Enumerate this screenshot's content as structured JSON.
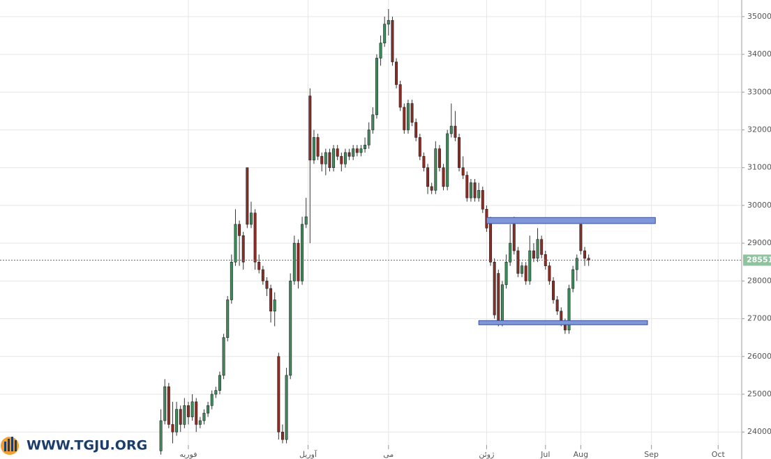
{
  "chart_data": {
    "type": "candlestick",
    "logo": "WWW.TGJU.ORG",
    "candles": [
      [
        23500,
        24600,
        23400,
        24300
      ],
      [
        24300,
        25400,
        24200,
        25200
      ],
      [
        25200,
        25300,
        24100,
        24200
      ],
      [
        24200,
        24800,
        23700,
        24000
      ],
      [
        24000,
        24800,
        23900,
        24600
      ],
      [
        24600,
        24700,
        24000,
        24200
      ],
      [
        24200,
        24900,
        24100,
        24700
      ],
      [
        24700,
        24800,
        24200,
        24400
      ],
      [
        24400,
        25000,
        24300,
        24800
      ],
      [
        24800,
        24900,
        24000,
        24200
      ],
      [
        24200,
        24400,
        24100,
        24300
      ],
      [
        24300,
        24600,
        24200,
        24500
      ],
      [
        24500,
        24800,
        24400,
        24700
      ],
      [
        24700,
        25100,
        24600,
        25000
      ],
      [
        25000,
        25200,
        24900,
        25100
      ],
      [
        25100,
        25600,
        25000,
        25500
      ],
      [
        25500,
        26600,
        25400,
        26500
      ],
      [
        26500,
        27600,
        26400,
        27500
      ],
      [
        27500,
        28700,
        27400,
        28500
      ],
      [
        28500,
        29900,
        28400,
        29500
      ],
      [
        29500,
        29600,
        28400,
        29200
      ],
      [
        29200,
        29300,
        28300,
        28500
      ],
      [
        31000,
        31000,
        29400,
        29500
      ],
      [
        29500,
        30100,
        29400,
        29800
      ],
      [
        29800,
        29900,
        28300,
        28500
      ],
      [
        28500,
        28700,
        28200,
        28300
      ],
      [
        28300,
        28400,
        27900,
        28000
      ],
      [
        28000,
        28100,
        27600,
        27800
      ],
      [
        27800,
        27900,
        26900,
        27200
      ],
      [
        27200,
        27700,
        26800,
        27500
      ],
      [
        26000,
        26100,
        23800,
        24000
      ],
      [
        24000,
        24200,
        23700,
        23800
      ],
      [
        23800,
        25700,
        23700,
        25500
      ],
      [
        25500,
        28200,
        25400,
        28000
      ],
      [
        28000,
        29200,
        27900,
        29000
      ],
      [
        29000,
        29100,
        27800,
        28000
      ],
      [
        28000,
        29700,
        27900,
        29500
      ],
      [
        29500,
        30200,
        29400,
        29700
      ],
      [
        32900,
        33100,
        29000,
        31200
      ],
      [
        31200,
        32000,
        31100,
        31800
      ],
      [
        31800,
        31900,
        31200,
        31300
      ],
      [
        31300,
        31400,
        30900,
        31100
      ],
      [
        31100,
        31500,
        30800,
        31400
      ],
      [
        31400,
        31500,
        30900,
        31000
      ],
      [
        31000,
        31600,
        30900,
        31500
      ],
      [
        31500,
        31600,
        31200,
        31300
      ],
      [
        31300,
        31400,
        30900,
        31100
      ],
      [
        31100,
        31500,
        31000,
        31400
      ],
      [
        31400,
        31500,
        31200,
        31300
      ],
      [
        31300,
        31600,
        31200,
        31500
      ],
      [
        31500,
        31600,
        31300,
        31400
      ],
      [
        31400,
        31600,
        31300,
        31500
      ],
      [
        31500,
        31800,
        31400,
        31600
      ],
      [
        31600,
        32200,
        31500,
        32000
      ],
      [
        32000,
        32600,
        31900,
        32400
      ],
      [
        32400,
        34000,
        32300,
        33900
      ],
      [
        33900,
        34500,
        33700,
        34300
      ],
      [
        34300,
        35000,
        34200,
        34800
      ],
      [
        34800,
        35200,
        34500,
        34900
      ],
      [
        34900,
        35000,
        33700,
        33800
      ],
      [
        33800,
        33900,
        33100,
        33200
      ],
      [
        33200,
        33300,
        32500,
        32600
      ],
      [
        32600,
        32700,
        31900,
        32000
      ],
      [
        32000,
        32800,
        31900,
        32700
      ],
      [
        32700,
        32800,
        32100,
        32200
      ],
      [
        32200,
        32300,
        31700,
        31800
      ],
      [
        31800,
        31900,
        31200,
        31300
      ],
      [
        31300,
        31400,
        30900,
        31000
      ],
      [
        31000,
        31100,
        30300,
        30500
      ],
      [
        30500,
        30600,
        30300,
        30400
      ],
      [
        30400,
        31700,
        30300,
        31500
      ],
      [
        31500,
        31600,
        30900,
        31000
      ],
      [
        31000,
        31100,
        30400,
        30500
      ],
      [
        30500,
        32000,
        30400,
        31900
      ],
      [
        31900,
        32700,
        31800,
        32100
      ],
      [
        32100,
        32500,
        31700,
        31800
      ],
      [
        31800,
        31900,
        30900,
        31000
      ],
      [
        31000,
        31300,
        30700,
        30800
      ],
      [
        30800,
        30900,
        30100,
        30200
      ],
      [
        30200,
        30700,
        30100,
        30600
      ],
      [
        30600,
        30700,
        30100,
        30200
      ],
      [
        30200,
        30600,
        30100,
        30400
      ],
      [
        30400,
        30500,
        29800,
        29900
      ],
      [
        29900,
        30000,
        29300,
        29400
      ],
      [
        29600,
        29700,
        28400,
        28500
      ],
      [
        28500,
        28600,
        27000,
        27100
      ],
      [
        28200,
        28300,
        26800,
        26900
      ],
      [
        26900,
        28000,
        26800,
        27900
      ],
      [
        27900,
        28700,
        27800,
        28500
      ],
      [
        28500,
        29500,
        28400,
        29000
      ],
      [
        29500,
        29700,
        28700,
        28800
      ],
      [
        28800,
        28900,
        28100,
        28200
      ],
      [
        28200,
        28500,
        28100,
        28400
      ],
      [
        28400,
        28500,
        27900,
        28000
      ],
      [
        28000,
        29200,
        27900,
        28800
      ],
      [
        28800,
        29000,
        28500,
        28600
      ],
      [
        28600,
        29400,
        28500,
        29100
      ],
      [
        29100,
        29200,
        28600,
        28700
      ],
      [
        28700,
        28800,
        28300,
        28400
      ],
      [
        28400,
        28500,
        27900,
        28000
      ],
      [
        28000,
        28100,
        27400,
        27500
      ],
      [
        27500,
        27600,
        27100,
        27200
      ],
      [
        27200,
        27300,
        26800,
        26900
      ],
      [
        26900,
        27000,
        26600,
        26700
      ],
      [
        26700,
        27900,
        26600,
        27800
      ],
      [
        27800,
        28400,
        27700,
        28300
      ],
      [
        28300,
        28700,
        28000,
        28600
      ],
      [
        29500,
        29500,
        28700,
        28800
      ],
      [
        28800,
        28900,
        28400,
        28600
      ],
      [
        28600,
        28700,
        28400,
        28551
      ]
    ],
    "up_color": "#3c8c5c",
    "down_color": "#8c2c24",
    "last_price": 28551,
    "last_price_color": "#8fc29f",
    "zones": [
      {
        "from": 83,
        "to": 126,
        "low": 29520,
        "high": 29680
      },
      {
        "from": 81,
        "to": 124,
        "low": 26840,
        "high": 26950
      }
    ],
    "zone_color": "#7f97d8",
    "xlim": [
      -41,
      148
    ],
    "xticks": [
      {
        "value": 7,
        "label": "فوریه"
      },
      {
        "value": 37.5,
        "label": "آوریل"
      },
      {
        "value": 58,
        "label": "می"
      },
      {
        "value": 83,
        "label": "ژوئن"
      },
      {
        "value": 98,
        "label": "Jul"
      },
      {
        "value": 107,
        "label": "Aug"
      },
      {
        "value": 125,
        "label": "Sep"
      },
      {
        "value": 142,
        "label": "Oct"
      }
    ],
    "ylim": [
      23580,
      35440
    ],
    "yticks": [
      24000,
      25000,
      26000,
      27000,
      28000,
      29000,
      30000,
      31000,
      32000,
      33000,
      34000,
      35000
    ],
    "grid": true
  }
}
